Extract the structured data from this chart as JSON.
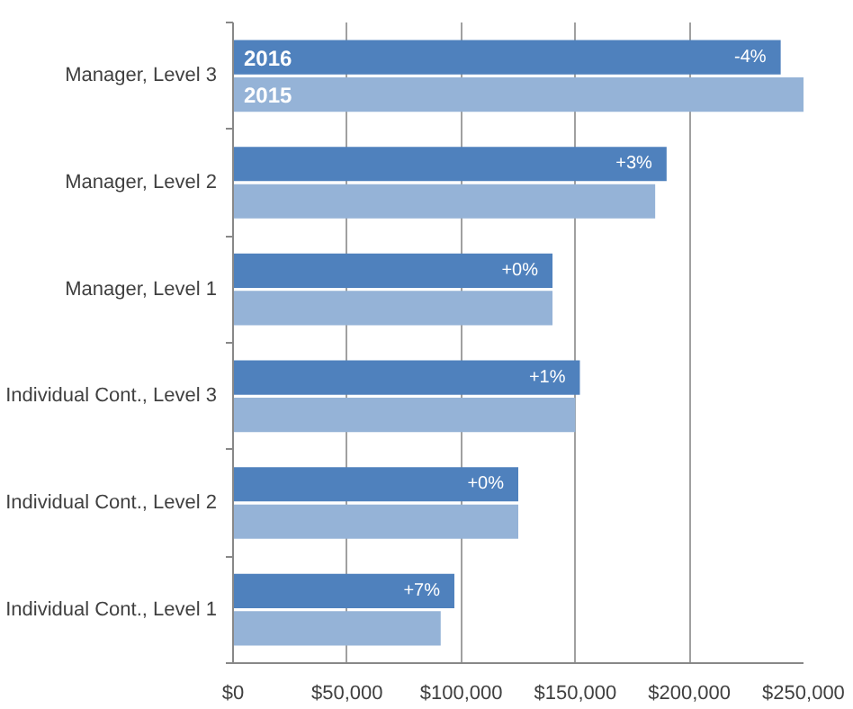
{
  "chart_data": {
    "type": "bar",
    "orientation": "horizontal",
    "categories": [
      "Manager, Level 3",
      "Manager, Level 2",
      "Manager, Level 1",
      "Individual Cont., Level 3",
      "Individual Cont., Level 2",
      "Individual Cont., Level 1"
    ],
    "series": [
      {
        "name": "2016",
        "color": "#4f81bd",
        "values": [
          240000,
          190000,
          140000,
          152000,
          125000,
          97000
        ]
      },
      {
        "name": "2015",
        "color": "#95b3d7",
        "values": [
          250000,
          185000,
          140000,
          150000,
          125000,
          91000
        ]
      }
    ],
    "annotations": [
      {
        "text": "-4%",
        "x": 240000,
        "y": "Manager, Level 3"
      },
      {
        "text": "+3%",
        "x": 190000,
        "y": "Manager, Level 2"
      },
      {
        "text": "+0%",
        "x": 140000,
        "y": "Manager, Level 1"
      },
      {
        "text": "+1%",
        "x": 152000,
        "y": "Individual Cont., Level 3"
      },
      {
        "text": "+0%",
        "x": 125000,
        "y": "Individual Cont., Level 2"
      },
      {
        "text": "+7%",
        "x": 97000,
        "y": "Individual Cont., Level 1"
      }
    ],
    "xlim": [
      0,
      250000
    ],
    "xticks": [
      {
        "value": 0,
        "label": "$0"
      },
      {
        "value": 50000,
        "label": "$50,000"
      },
      {
        "value": 100000,
        "label": "$100,000"
      },
      {
        "value": 150000,
        "label": "$150,000"
      },
      {
        "value": 200000,
        "label": "$200,000"
      },
      {
        "value": 250000,
        "label": "$250,000"
      }
    ],
    "grid": "x",
    "legend": false
  }
}
